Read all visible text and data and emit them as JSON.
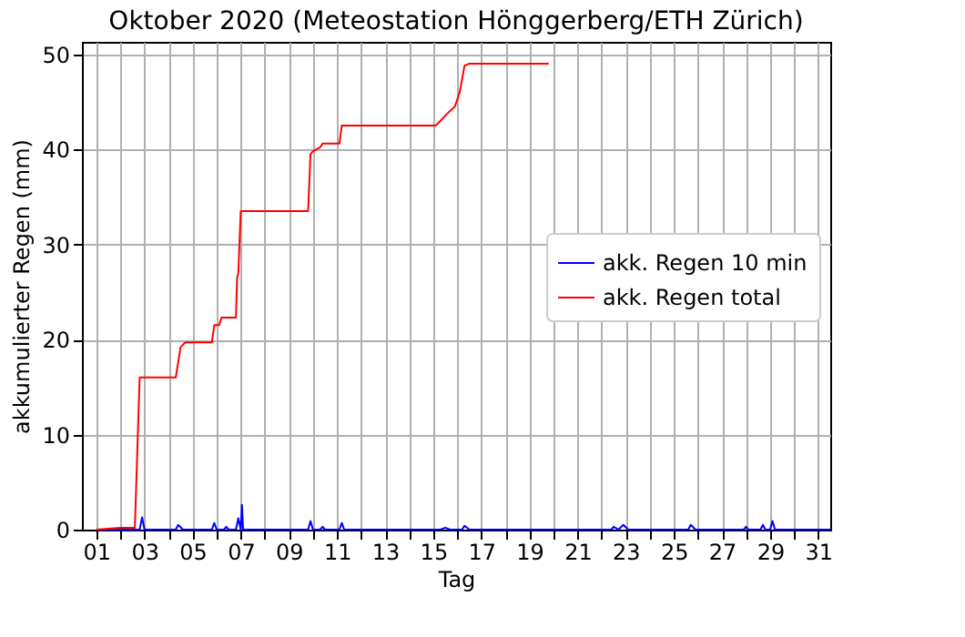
{
  "chart_data": {
    "type": "line",
    "title": "Oktober 2020  (Meteostation Hönggerberg/ETH Zürich)",
    "xlabel": "Tag",
    "ylabel": "akkumulierter Regen (mm)",
    "series": [
      {
        "name": "akk. Regen 10 min",
        "color": "#0000ff",
        "x": [
          1.0,
          2.8,
          2.9,
          3.0,
          4.3,
          4.4,
          4.6,
          5.8,
          5.9,
          6.0,
          6.3,
          6.4,
          6.5,
          6.8,
          6.9,
          7.0,
          7.05,
          7.1,
          9.8,
          9.9,
          10.0,
          10.3,
          10.4,
          10.5,
          11.1,
          11.2,
          11.3,
          15.3,
          15.5,
          15.7,
          16.2,
          16.3,
          16.5,
          22.4,
          22.5,
          22.7,
          22.9,
          23.1,
          25.6,
          25.7,
          25.9,
          27.9,
          28.0,
          28.1,
          28.6,
          28.7,
          28.8,
          29.0,
          29.1,
          29.2,
          31.5
        ],
        "values": [
          0,
          0,
          1.3,
          0,
          0,
          0.5,
          0,
          0,
          0.7,
          0,
          0,
          0.3,
          0,
          0,
          1.2,
          0,
          2.6,
          0,
          0,
          0.9,
          0,
          0,
          0.3,
          0,
          0,
          0.7,
          0,
          0,
          0.2,
          0,
          0,
          0.4,
          0,
          0,
          0.3,
          0,
          0.5,
          0,
          0,
          0.5,
          0,
          0,
          0.3,
          0,
          0,
          0.5,
          0,
          0,
          0.9,
          0,
          0
        ]
      },
      {
        "name": "akk. Regen total",
        "color": "#ff0000",
        "x": [
          1.0,
          2.0,
          2.6,
          2.8,
          4.3,
          4.5,
          4.7,
          5.8,
          5.9,
          6.1,
          6.2,
          6.8,
          6.85,
          6.9,
          7.0,
          9.8,
          9.9,
          10.0,
          10.3,
          10.4,
          11.1,
          11.2,
          15.1,
          15.3,
          15.6,
          15.9,
          16.1,
          16.3,
          16.5,
          19.8
        ],
        "values": [
          0,
          0.2,
          0.2,
          16,
          16,
          19.2,
          19.7,
          19.7,
          21.5,
          21.5,
          22.3,
          22.3,
          26.5,
          27,
          33.5,
          33.5,
          39.5,
          39.8,
          40.2,
          40.6,
          40.6,
          42.5,
          42.5,
          43,
          43.8,
          44.5,
          46,
          48.8,
          49,
          49
        ]
      }
    ],
    "xlim": [
      0.4,
      31.5
    ],
    "ylim": [
      0,
      51.3
    ],
    "xticks": [
      {
        "value": 1,
        "label": "01"
      },
      {
        "value": 2,
        "label": null
      },
      {
        "value": 3,
        "label": "03"
      },
      {
        "value": 4,
        "label": null
      },
      {
        "value": 5,
        "label": "05"
      },
      {
        "value": 6,
        "label": null
      },
      {
        "value": 7,
        "label": "07"
      },
      {
        "value": 8,
        "label": null
      },
      {
        "value": 9,
        "label": "09"
      },
      {
        "value": 10,
        "label": null
      },
      {
        "value": 11,
        "label": "11"
      },
      {
        "value": 12,
        "label": null
      },
      {
        "value": 13,
        "label": "13"
      },
      {
        "value": 14,
        "label": null
      },
      {
        "value": 15,
        "label": "15"
      },
      {
        "value": 16,
        "label": null
      },
      {
        "value": 17,
        "label": "17"
      },
      {
        "value": 18,
        "label": null
      },
      {
        "value": 19,
        "label": "19"
      },
      {
        "value": 20,
        "label": null
      },
      {
        "value": 21,
        "label": "21"
      },
      {
        "value": 22,
        "label": null
      },
      {
        "value": 23,
        "label": "23"
      },
      {
        "value": 24,
        "label": null
      },
      {
        "value": 25,
        "label": "25"
      },
      {
        "value": 26,
        "label": null
      },
      {
        "value": 27,
        "label": "27"
      },
      {
        "value": 28,
        "label": null
      },
      {
        "value": 29,
        "label": "29"
      },
      {
        "value": 30,
        "label": null
      },
      {
        "value": 31,
        "label": "31"
      }
    ],
    "yticks": [
      0,
      10,
      20,
      30,
      40,
      50
    ],
    "grid": true,
    "legend": "right",
    "line_style": "solid",
    "marker": "none"
  }
}
